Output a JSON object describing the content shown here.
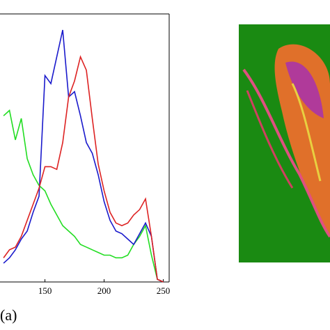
{
  "chart_data": {
    "type": "line",
    "caption": "(a)",
    "x": [
      115,
      120,
      125,
      130,
      135,
      140,
      145,
      150,
      155,
      160,
      165,
      170,
      175,
      180,
      185,
      190,
      195,
      200,
      205,
      210,
      215,
      220,
      225,
      230,
      235,
      240,
      245,
      250
    ],
    "xlim": [
      112,
      255
    ],
    "xticks": [
      150,
      200,
      250
    ],
    "ylim": [
      0,
      100
    ],
    "series": [
      {
        "name": "green",
        "color": "#22dd22",
        "values": [
          62,
          64,
          53,
          61,
          46,
          40,
          36,
          34,
          29,
          25,
          21,
          19,
          17,
          14,
          13,
          12,
          11,
          10,
          10,
          9,
          9,
          10,
          14,
          17,
          21,
          10,
          1,
          0
        ]
      },
      {
        "name": "blue",
        "color": "#1a1acc",
        "values": [
          7,
          9,
          12,
          16,
          19,
          26,
          32,
          77,
          74,
          84,
          94,
          69,
          71,
          62,
          52,
          48,
          40,
          30,
          23,
          19,
          18,
          16,
          14,
          18,
          22,
          17,
          1,
          0
        ]
      },
      {
        "name": "red",
        "color": "#dd2222",
        "values": [
          9,
          12,
          13,
          17,
          23,
          29,
          35,
          43,
          43,
          42,
          52,
          69,
          75,
          84,
          79,
          61,
          44,
          34,
          26,
          22,
          21,
          22,
          25,
          27,
          31,
          17,
          1,
          0
        ]
      }
    ]
  }
}
